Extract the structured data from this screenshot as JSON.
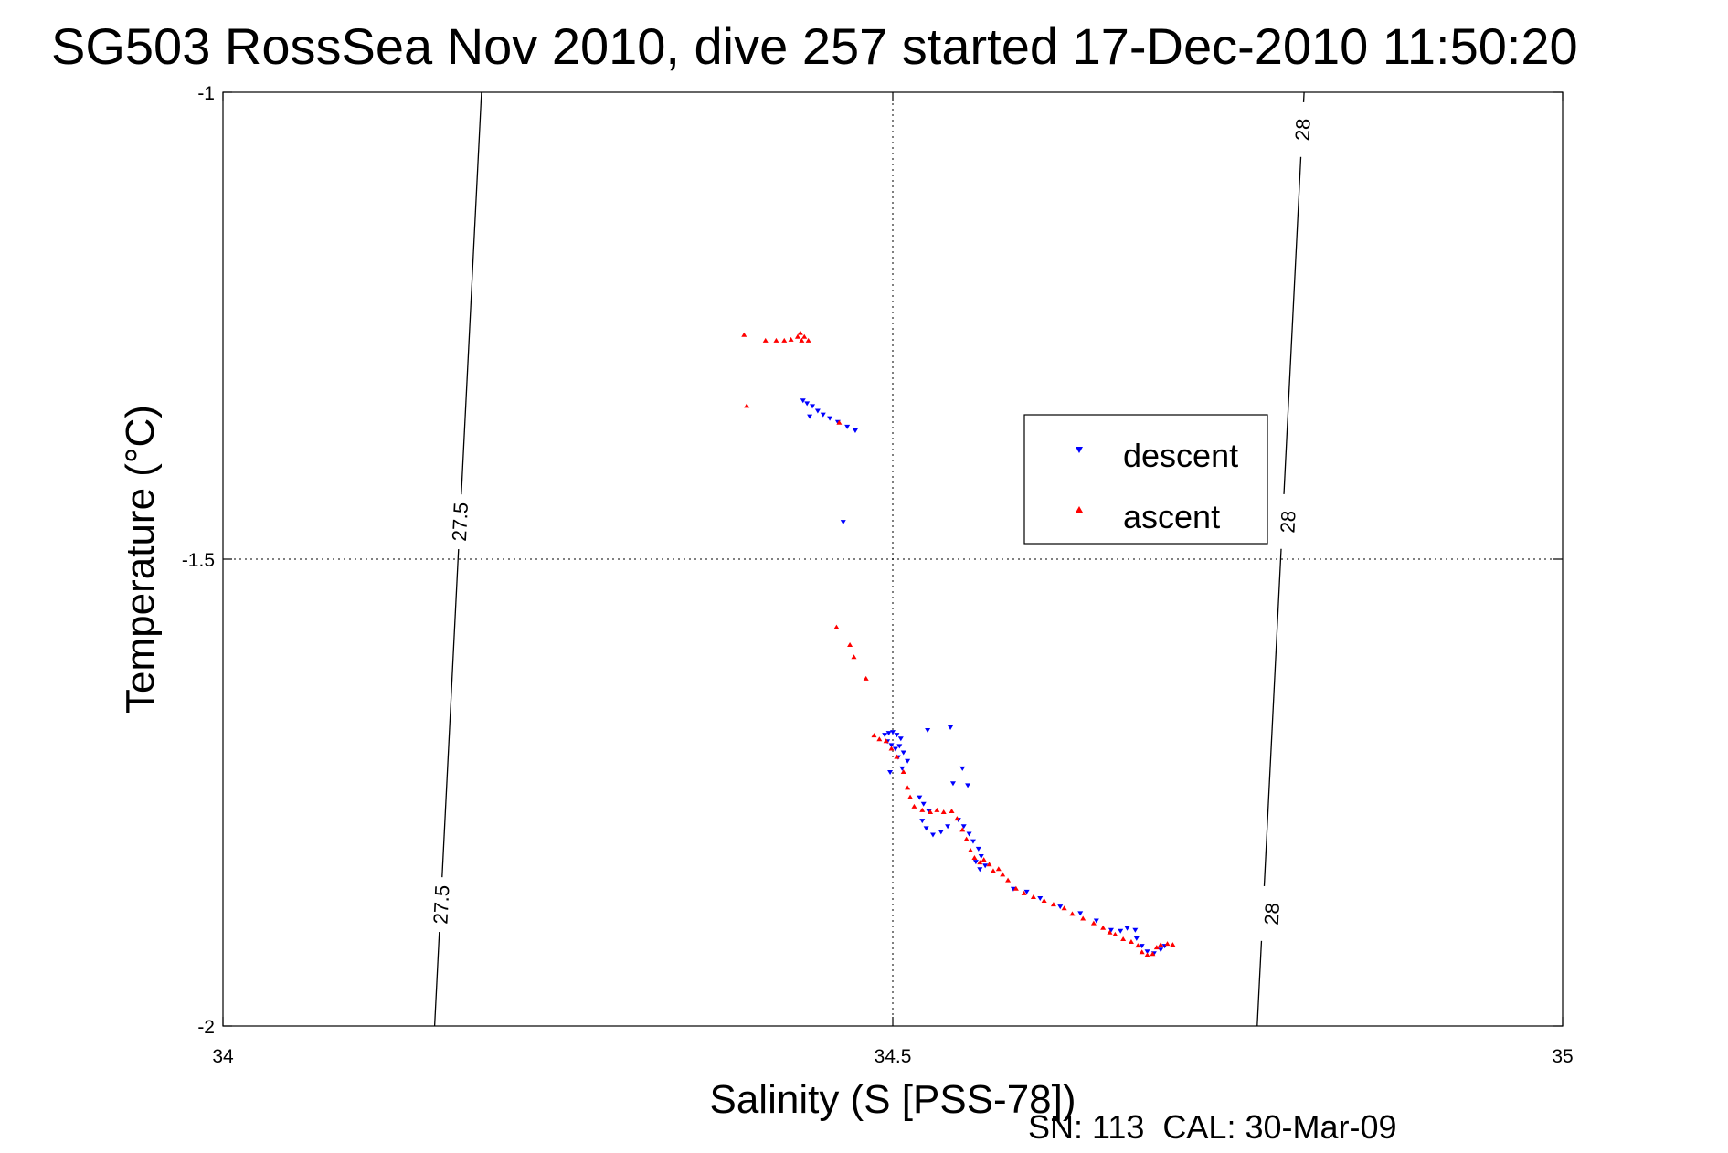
{
  "chart_data": {
    "type": "scatter",
    "title": "SG503 RossSea Nov 2010, dive 257 started 17-Dec-2010 11:50:20",
    "xlabel": "Salinity (S [PSS-78])",
    "ylabel": "Temperature (°C)",
    "xlim": [
      34,
      35
    ],
    "ylim": [
      -2,
      -1
    ],
    "xticks": [
      "34",
      "34.5",
      "35"
    ],
    "yticks": [
      "-1",
      "-1.5",
      "-2"
    ],
    "grid": true,
    "legend_placement": "center-right",
    "footer": "SN: 113  CAL: 30-Mar-09",
    "contours": [
      {
        "level": "27.5",
        "points": [
          [
            34.193,
            -1.0
          ],
          [
            34.158,
            -2.0
          ]
        ],
        "label_positions": [
          [
            34.177,
            -1.46
          ],
          [
            34.163,
            -1.87
          ]
        ]
      },
      {
        "level": "28",
        "points": [
          [
            34.807,
            -1.0
          ],
          [
            34.772,
            -2.0
          ]
        ],
        "label_positions": [
          [
            34.806,
            -1.04
          ],
          [
            34.795,
            -1.46
          ],
          [
            34.783,
            -1.88
          ]
        ]
      }
    ],
    "series": [
      {
        "name": "descent",
        "color": "#0000ff",
        "marker": "triangle-down",
        "points": [
          [
            34.433,
            -1.33
          ],
          [
            34.436,
            -1.333
          ],
          [
            34.44,
            -1.336
          ],
          [
            34.444,
            -1.341
          ],
          [
            34.448,
            -1.345
          ],
          [
            34.453,
            -1.349
          ],
          [
            34.459,
            -1.353
          ],
          [
            34.466,
            -1.358
          ],
          [
            34.472,
            -1.362
          ],
          [
            34.438,
            -1.347
          ],
          [
            34.463,
            -1.46
          ],
          [
            34.494,
            -1.688
          ],
          [
            34.497,
            -1.686
          ],
          [
            34.5,
            -1.685
          ],
          [
            34.503,
            -1.688
          ],
          [
            34.506,
            -1.692
          ],
          [
            34.496,
            -1.695
          ],
          [
            34.499,
            -1.699
          ],
          [
            34.502,
            -1.703
          ],
          [
            34.505,
            -1.7
          ],
          [
            34.508,
            -1.707
          ],
          [
            34.504,
            -1.712
          ],
          [
            34.511,
            -1.716
          ],
          [
            34.507,
            -1.724
          ],
          [
            34.498,
            -1.728
          ],
          [
            34.526,
            -1.683
          ],
          [
            34.543,
            -1.68
          ],
          [
            34.552,
            -1.724
          ],
          [
            34.545,
            -1.74
          ],
          [
            34.556,
            -1.742
          ],
          [
            34.52,
            -1.755
          ],
          [
            34.523,
            -1.762
          ],
          [
            34.527,
            -1.77
          ],
          [
            34.522,
            -1.78
          ],
          [
            34.525,
            -1.788
          ],
          [
            34.53,
            -1.795
          ],
          [
            34.536,
            -1.792
          ],
          [
            34.541,
            -1.786
          ],
          [
            34.549,
            -1.779
          ],
          [
            34.553,
            -1.786
          ],
          [
            34.557,
            -1.794
          ],
          [
            34.56,
            -1.802
          ],
          [
            34.564,
            -1.81
          ],
          [
            34.566,
            -1.818
          ],
          [
            34.562,
            -1.824
          ],
          [
            34.565,
            -1.832
          ],
          [
            34.569,
            -1.828
          ],
          [
            34.59,
            -1.853
          ],
          [
            34.6,
            -1.856
          ],
          [
            34.61,
            -1.863
          ],
          [
            34.625,
            -1.872
          ],
          [
            34.64,
            -1.879
          ],
          [
            34.652,
            -1.887
          ],
          [
            34.663,
            -1.897
          ],
          [
            34.67,
            -1.898
          ],
          [
            34.675,
            -1.895
          ],
          [
            34.681,
            -1.897
          ],
          [
            34.682,
            -1.906
          ],
          [
            34.686,
            -1.914
          ],
          [
            34.69,
            -1.92
          ],
          [
            34.695,
            -1.922
          ],
          [
            34.7,
            -1.918
          ],
          [
            34.703,
            -1.914
          ]
        ]
      },
      {
        "name": "ascent",
        "color": "#ff0000",
        "marker": "triangle-up",
        "points": [
          [
            34.389,
            -1.26
          ],
          [
            34.405,
            -1.266
          ],
          [
            34.413,
            -1.266
          ],
          [
            34.419,
            -1.266
          ],
          [
            34.424,
            -1.265
          ],
          [
            34.429,
            -1.262
          ],
          [
            34.431,
            -1.258
          ],
          [
            34.434,
            -1.262
          ],
          [
            34.437,
            -1.266
          ],
          [
            34.432,
            -1.266
          ],
          [
            34.391,
            -1.336
          ],
          [
            34.46,
            -1.354
          ],
          [
            34.458,
            -1.573
          ],
          [
            34.468,
            -1.592
          ],
          [
            34.471,
            -1.605
          ],
          [
            34.48,
            -1.628
          ],
          [
            34.486,
            -1.689
          ],
          [
            34.49,
            -1.693
          ],
          [
            34.495,
            -1.695
          ],
          [
            34.499,
            -1.703
          ],
          [
            34.503,
            -1.712
          ],
          [
            34.508,
            -1.728
          ],
          [
            34.511,
            -1.745
          ],
          [
            34.513,
            -1.755
          ],
          [
            34.516,
            -1.765
          ],
          [
            34.522,
            -1.769
          ],
          [
            34.528,
            -1.771
          ],
          [
            34.533,
            -1.769
          ],
          [
            34.538,
            -1.771
          ],
          [
            34.544,
            -1.77
          ],
          [
            34.548,
            -1.778
          ],
          [
            34.552,
            -1.79
          ],
          [
            34.555,
            -1.8
          ],
          [
            34.558,
            -1.812
          ],
          [
            34.561,
            -1.82
          ],
          [
            34.565,
            -1.825
          ],
          [
            34.568,
            -1.822
          ],
          [
            34.572,
            -1.827
          ],
          [
            34.575,
            -1.834
          ],
          [
            34.579,
            -1.832
          ],
          [
            34.582,
            -1.838
          ],
          [
            34.586,
            -1.844
          ],
          [
            34.592,
            -1.853
          ],
          [
            34.598,
            -1.858
          ],
          [
            34.605,
            -1.862
          ],
          [
            34.613,
            -1.866
          ],
          [
            34.62,
            -1.87
          ],
          [
            34.628,
            -1.874
          ],
          [
            34.634,
            -1.88
          ],
          [
            34.642,
            -1.885
          ],
          [
            34.65,
            -1.89
          ],
          [
            34.657,
            -1.895
          ],
          [
            34.662,
            -1.9
          ],
          [
            34.666,
            -1.902
          ],
          [
            34.672,
            -1.907
          ],
          [
            34.678,
            -1.91
          ],
          [
            34.683,
            -1.914
          ],
          [
            34.686,
            -1.921
          ],
          [
            34.69,
            -1.924
          ],
          [
            34.694,
            -1.923
          ],
          [
            34.697,
            -1.916
          ],
          [
            34.7,
            -1.913
          ],
          [
            34.705,
            -1.912
          ],
          [
            34.709,
            -1.913
          ]
        ]
      }
    ]
  }
}
